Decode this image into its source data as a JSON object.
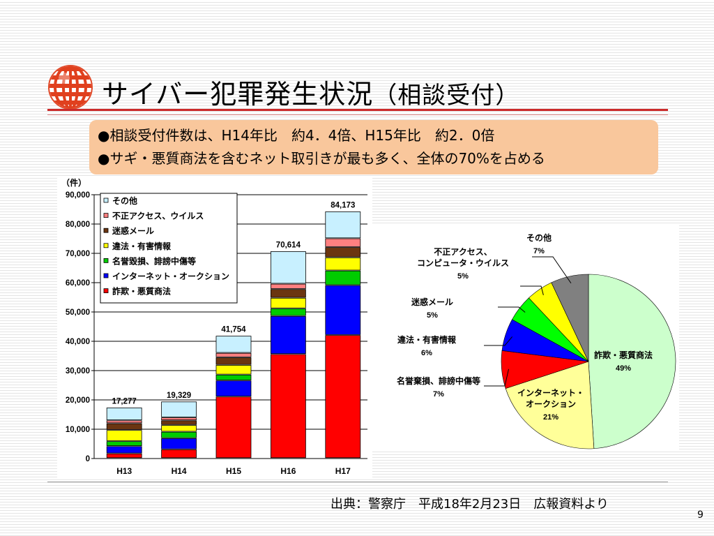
{
  "slide": {
    "title_main": "サイバー犯罪発生状況",
    "title_paren": "（相談受付）",
    "bullets": [
      "●相談受付件数は、H14年比　約4．4倍、H15年比　約2．0倍",
      "●サギ・悪質商法を含むネット取引きが最も多く、全体の70%を占める"
    ],
    "source": "出典：警察庁　平成18年2月23日　広報資料より",
    "page_number": "9"
  },
  "colors": {
    "fraud": "#ff0000",
    "internet_auction": "#0000ff",
    "defamation": "#00cc00",
    "illegal_info": "#ffff00",
    "spam": "#6b3510",
    "unauthorized_access": "#ff8080",
    "other": "#c8f0ff",
    "pie_fraud": "#ccffcc",
    "pie_auction": "#ffff99",
    "pie_defamation": "#ff0000",
    "pie_illegal": "#0000ff",
    "pie_spam": "#00ff00",
    "pie_unauth": "#ffff00",
    "pie_other": "#808080",
    "accent_red": "#cc2a2a"
  },
  "chart_data": [
    {
      "type": "bar",
      "stacked": true,
      "ylabel": "（件）",
      "ylim": [
        0,
        90000
      ],
      "yticks": [
        "0",
        "10,000",
        "20,000",
        "30,000",
        "40,000",
        "50,000",
        "60,000",
        "70,000",
        "80,000",
        "90,000"
      ],
      "categories": [
        "H13",
        "H14",
        "H15",
        "H16",
        "H17"
      ],
      "totals": [
        17277,
        19329,
        41754,
        70614,
        84173
      ],
      "total_labels": [
        "17,277",
        "19,329",
        "41,754",
        "70,614",
        "84,173"
      ],
      "series": [
        {
          "name": "詐欺・悪質商法",
          "color_key": "fraud",
          "values": [
            1600,
            3000,
            21000,
            35500,
            42000
          ]
        },
        {
          "name": "インターネット・オークション",
          "color_key": "internet_auction",
          "values": [
            2500,
            3800,
            5500,
            13000,
            17000
          ]
        },
        {
          "name": "名誉毀損、誹謗中傷等",
          "color_key": "defamation",
          "values": [
            1700,
            2200,
            2000,
            2600,
            5000
          ]
        },
        {
          "name": "違法・有害情報",
          "color_key": "illegal_info",
          "values": [
            3800,
            2300,
            3300,
            3600,
            4500
          ]
        },
        {
          "name": "迷惑メール",
          "color_key": "spam",
          "values": [
            2300,
            1600,
            2600,
            3000,
            3500
          ]
        },
        {
          "name": "不正アクセス、ウイルス",
          "color_key": "unauthorized_access",
          "values": [
            1000,
            1000,
            1500,
            1800,
            3000
          ]
        },
        {
          "name": "その他",
          "color_key": "other",
          "values": [
            4377,
            5429,
            5854,
            11114,
            9173
          ]
        }
      ],
      "legend_order": [
        "その他",
        "不正アクセス、ウイルス",
        "迷惑メール",
        "違法・有害情報",
        "名誉毀損、誹謗中傷等",
        "インターネット・オークション",
        "詐欺・悪質商法"
      ],
      "legend": "top-left"
    },
    {
      "type": "pie",
      "slices": [
        {
          "label": "詐欺・悪質商法",
          "value": 49,
          "pct": "49%",
          "color_key": "pie_fraud"
        },
        {
          "label": "インターネット・オークション",
          "label_lines": [
            "インターネット・",
            "オークション"
          ],
          "value": 21,
          "pct": "21%",
          "color_key": "pie_auction"
        },
        {
          "label": "名誉棄損、誹謗中傷等",
          "label_lines": [
            "名誉棄損、誹謗中傷等"
          ],
          "value": 7,
          "pct": "7%",
          "color_key": "pie_defamation"
        },
        {
          "label": "違法・有害情報",
          "label_lines": [
            "違法・有害情報"
          ],
          "value": 6,
          "pct": "6%",
          "color_key": "pie_illegal"
        },
        {
          "label": "迷惑メール",
          "label_lines": [
            "迷惑メール"
          ],
          "value": 5,
          "pct": "5%",
          "color_key": "pie_spam"
        },
        {
          "label": "不正アクセス、コンピュータ・ウイルス",
          "label_lines": [
            "不正アクセス、",
            "コンピュータ・ウイルス"
          ],
          "value": 5,
          "pct": "5%",
          "color_key": "pie_unauth"
        },
        {
          "label": "その他",
          "label_lines": [
            "その他"
          ],
          "value": 7,
          "pct": "7%",
          "color_key": "pie_other"
        }
      ]
    }
  ]
}
